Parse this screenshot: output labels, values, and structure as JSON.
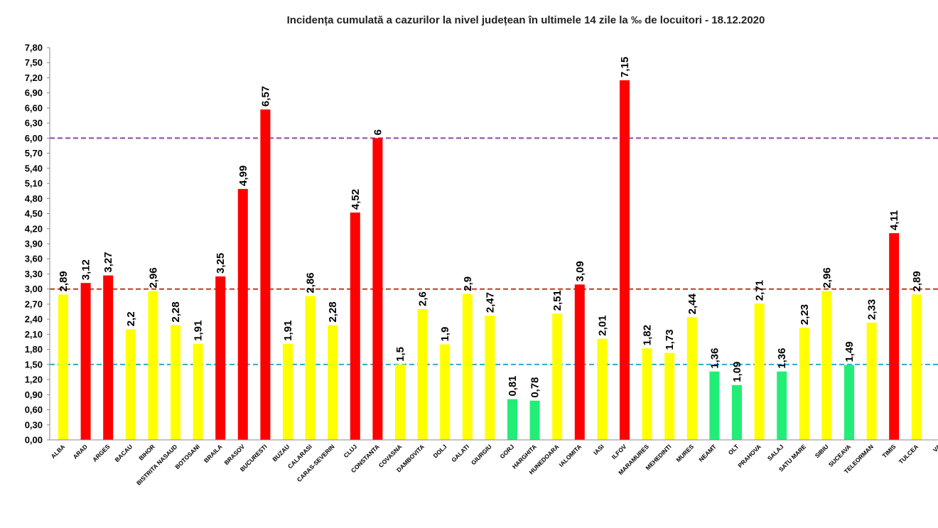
{
  "chart_data": {
    "type": "bar",
    "title": "Incidența cumulată a cazurilor la nivel județean în ultimele 14 zile   la ‰ de locuitori  - 18.12.2020",
    "xlabel": "",
    "ylabel": "",
    "ylim": [
      0,
      7.8
    ],
    "ytick_step": 0.3,
    "yticks": [
      "0,00",
      "0,30",
      "0,60",
      "0,90",
      "1,20",
      "1,50",
      "1,80",
      "2,10",
      "2,40",
      "2,70",
      "3,00",
      "3,30",
      "3,60",
      "3,90",
      "4,20",
      "4,50",
      "4,80",
      "5,10",
      "5,40",
      "5,70",
      "6,00",
      "6,30",
      "6,60",
      "6,90",
      "7,20",
      "7,50",
      "7,80"
    ],
    "grid": false,
    "legend": "none",
    "categories": [
      "ALBA",
      "ARAD",
      "ARGES",
      "BACAU",
      "BIHOR",
      "BISTRITA NASAUD",
      "BOTOSANI",
      "BRAILA",
      "BRASOV",
      "BUCURESTI",
      "BUZAU",
      "CALARASI",
      "CARAS-SEVERIN",
      "CLUJ",
      "CONSTANTA",
      "COVASNA",
      "DAMBOVITA",
      "DOLJ",
      "GALATI",
      "GIURGIU",
      "GORJ",
      "HARGHITA",
      "HUNEDOARA",
      "IALOMITA",
      "IASI",
      "ILFOV",
      "MARAMURES",
      "MEHEDINTI",
      "MURES",
      "NEAMT",
      "OLT",
      "PRAHOVA",
      "SALAJ",
      "SATU MARE",
      "SIBIU",
      "SUCEAVA",
      "TELEORMAN",
      "TIMIS",
      "TULCEA",
      "VA"
    ],
    "values": [
      2.89,
      3.12,
      3.27,
      2.2,
      2.96,
      2.28,
      1.91,
      3.25,
      4.99,
      6.57,
      1.91,
      2.86,
      2.28,
      4.52,
      6,
      1.5,
      2.6,
      1.9,
      2.9,
      2.47,
      0.81,
      0.78,
      2.51,
      3.09,
      2.01,
      7.15,
      1.82,
      1.73,
      2.44,
      1.36,
      1.09,
      2.71,
      1.36,
      2.23,
      2.96,
      1.49,
      2.33,
      4.11,
      2.89,
      0
    ],
    "value_labels": [
      "2,89",
      "3,12",
      "3,27",
      "2,2",
      "2,96",
      "2,28",
      "1,91",
      "3,25",
      "4,99",
      "6,57",
      "1,91",
      "2,86",
      "2,28",
      "4,52",
      "6",
      "1,5",
      "2,6",
      "1,9",
      "2,9",
      "2,47",
      "0,81",
      "0,78",
      "2,51",
      "3,09",
      "2,01",
      "7,15",
      "1,82",
      "1,73",
      "2,44",
      "1,36",
      "1,09",
      "2,71",
      "1,36",
      "2,23",
      "2,96",
      "1,49",
      "2,33",
      "4,11",
      "2,89",
      ""
    ],
    "bar_colors": [
      "#ffff00",
      "#ff0000",
      "#ff0000",
      "#ffff00",
      "#ffff00",
      "#ffff00",
      "#ffff00",
      "#ff0000",
      "#ff0000",
      "#ff0000",
      "#ffff00",
      "#ffff00",
      "#ffff00",
      "#ff0000",
      "#ff0000",
      "#ffff00",
      "#ffff00",
      "#ffff00",
      "#ffff00",
      "#ffff00",
      "#22ee77",
      "#22ee77",
      "#ffff00",
      "#ff0000",
      "#ffff00",
      "#ff0000",
      "#ffff00",
      "#ffff00",
      "#ffff00",
      "#22ee77",
      "#22ee77",
      "#ffff00",
      "#22ee77",
      "#ffff00",
      "#ffff00",
      "#22ee77",
      "#ffff00",
      "#ff0000",
      "#ffff00",
      "#ffff00"
    ],
    "reference_lines": [
      {
        "value": 6.0,
        "color": "#8e44ad"
      },
      {
        "value": 3.0,
        "color": "#c0392b"
      },
      {
        "value": 1.5,
        "color": "#2ea8d6"
      }
    ]
  }
}
